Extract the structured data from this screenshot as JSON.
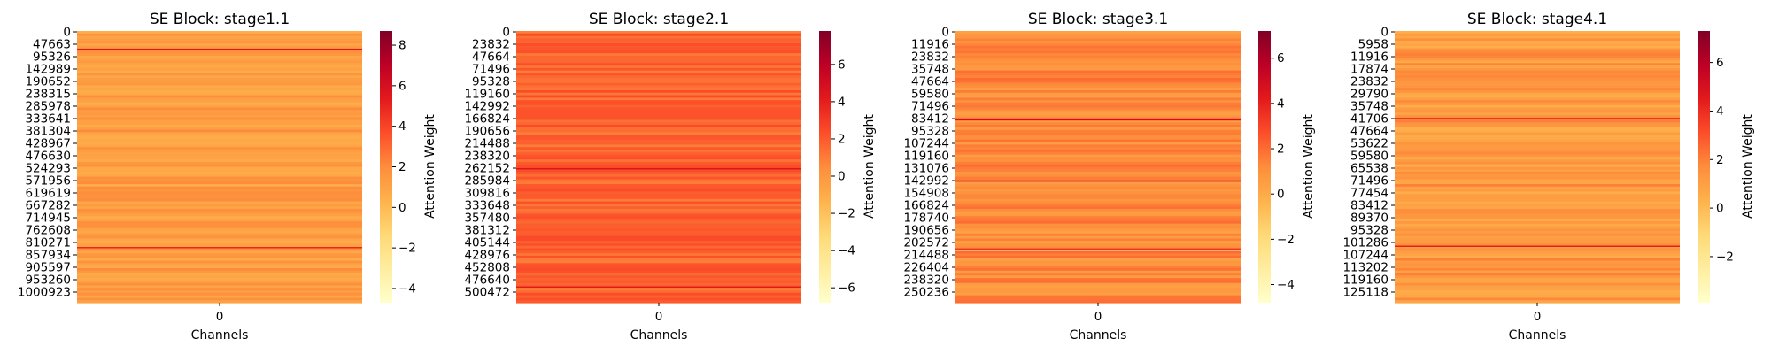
{
  "chart_data": [
    {
      "type": "heatmap",
      "title": "SE Block: stage1.1",
      "xlabel": "Channels",
      "x_tick_labels": [
        "0"
      ],
      "y_tick_labels": [
        "0",
        "47663",
        "95326",
        "142989",
        "190652",
        "238315",
        "285978",
        "333641",
        "381304",
        "428967",
        "476630",
        "524293",
        "571956",
        "619619",
        "667282",
        "714945",
        "762608",
        "810271",
        "857934",
        "905597",
        "953260",
        "1000923"
      ],
      "colorbar": {
        "label": "Attention Weight",
        "ticks": [
          8,
          6,
          4,
          2,
          0,
          -2,
          -4
        ],
        "range": [
          -4.7,
          8.7
        ],
        "colormap": "YlOrRd"
      },
      "base_value": 1.3,
      "highlight_rows": [
        {
          "position": 0.065,
          "value": 5.5
        },
        {
          "position": 0.795,
          "value": 5.2
        }
      ]
    },
    {
      "type": "heatmap",
      "title": "SE Block: stage2.1",
      "xlabel": "Channels",
      "x_tick_labels": [
        "0"
      ],
      "y_tick_labels": [
        "0",
        "23832",
        "47664",
        "71496",
        "95328",
        "119160",
        "142992",
        "166824",
        "190656",
        "214488",
        "238320",
        "262152",
        "285984",
        "309816",
        "333648",
        "357480",
        "381312",
        "405144",
        "428976",
        "452808",
        "476640",
        "500472"
      ],
      "colorbar": {
        "label": "Attention Weight",
        "ticks": [
          6,
          4,
          2,
          0,
          -2,
          -4,
          -6
        ],
        "range": [
          -6.8,
          7.8
        ],
        "colormap": "YlOrRd"
      },
      "base_value": 1.7,
      "highlight_rows": [
        {
          "position": 0.505,
          "value": 4.6
        },
        {
          "position": 0.94,
          "value": 4.2
        }
      ]
    },
    {
      "type": "heatmap",
      "title": "SE Block: stage3.1",
      "xlabel": "Channels",
      "x_tick_labels": [
        "0"
      ],
      "y_tick_labels": [
        "0",
        "11916",
        "23832",
        "35748",
        "47664",
        "59580",
        "71496",
        "83412",
        "95328",
        "107244",
        "119160",
        "131076",
        "142992",
        "154908",
        "166824",
        "178740",
        "190656",
        "202572",
        "214488",
        "226404",
        "238320",
        "250236"
      ],
      "colorbar": {
        "label": "Attention Weight",
        "ticks": [
          6,
          4,
          2,
          0,
          -2,
          -4
        ],
        "range": [
          -4.8,
          7.2
        ],
        "colormap": "YlOrRd"
      },
      "base_value": 1.2,
      "highlight_rows": [
        {
          "position": 0.325,
          "value": 4.8
        },
        {
          "position": 0.55,
          "value": 5.5
        },
        {
          "position": 0.8,
          "value": 3.5
        },
        {
          "position": 0.805,
          "value": -3.0
        }
      ]
    },
    {
      "type": "heatmap",
      "title": "SE Block: stage4.1",
      "xlabel": "Channels",
      "x_tick_labels": [
        "0"
      ],
      "y_tick_labels": [
        "0",
        "5958",
        "11916",
        "17874",
        "23832",
        "29790",
        "35748",
        "41706",
        "47664",
        "53622",
        "59580",
        "65538",
        "71496",
        "77454",
        "83412",
        "89370",
        "95328",
        "101286",
        "107244",
        "113202",
        "119160",
        "125118"
      ],
      "colorbar": {
        "label": "Attention Weight",
        "ticks": [
          6,
          4,
          2,
          0,
          -2
        ],
        "range": [
          -3.9,
          7.3
        ],
        "colormap": "YlOrRd"
      },
      "base_value": 1.2,
      "highlight_rows": [
        {
          "position": 0.32,
          "value": 4.5
        },
        {
          "position": 0.79,
          "value": 4.6
        }
      ]
    }
  ]
}
